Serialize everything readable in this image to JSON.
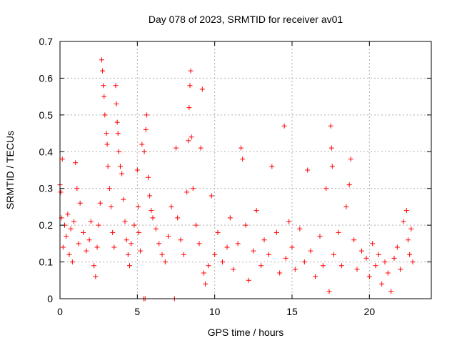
{
  "chart_data": {
    "type": "scatter",
    "title": "Day 078 of 2023, SRMTID for receiver av01",
    "xlabel": "GPS time / hours",
    "ylabel": "SRMTID / TECUs",
    "xlim": [
      0,
      24
    ],
    "ylim": [
      0,
      0.7
    ],
    "xticks": [
      0,
      5,
      10,
      15,
      20
    ],
    "xtick_labels": [
      "0",
      "5",
      "10",
      "15",
      "20"
    ],
    "yticks": [
      0,
      0.1,
      0.2,
      0.3,
      0.4,
      0.5,
      0.6,
      0.7
    ],
    "ytick_labels": [
      "0",
      "0.1",
      "0.2",
      "0.3",
      "0.4",
      "0.5",
      "0.6",
      "0.7"
    ],
    "grid": true,
    "marker": "+",
    "color": "#ff0000",
    "series": [
      {
        "name": "av01",
        "points": [
          [
            0.0,
            0.31
          ],
          [
            0.05,
            0.29
          ],
          [
            0.1,
            0.22
          ],
          [
            0.15,
            0.38
          ],
          [
            0.2,
            0.14
          ],
          [
            0.3,
            0.2
          ],
          [
            0.4,
            0.17
          ],
          [
            0.5,
            0.23
          ],
          [
            0.6,
            0.12
          ],
          [
            0.7,
            0.19
          ],
          [
            0.8,
            0.1
          ],
          [
            0.9,
            0.21
          ],
          [
            1.0,
            0.37
          ],
          [
            1.1,
            0.3
          ],
          [
            1.2,
            0.15
          ],
          [
            1.3,
            0.26
          ],
          [
            1.5,
            0.18
          ],
          [
            1.7,
            0.13
          ],
          [
            1.9,
            0.16
          ],
          [
            2.0,
            0.21
          ],
          [
            2.2,
            0.09
          ],
          [
            2.3,
            0.06
          ],
          [
            2.4,
            0.14
          ],
          [
            2.5,
            0.2
          ],
          [
            2.6,
            0.26
          ],
          [
            2.7,
            0.65
          ],
          [
            2.75,
            0.62
          ],
          [
            2.8,
            0.58
          ],
          [
            2.85,
            0.55
          ],
          [
            2.9,
            0.5
          ],
          [
            3.0,
            0.45
          ],
          [
            3.05,
            0.42
          ],
          [
            3.1,
            0.36
          ],
          [
            3.2,
            0.3
          ],
          [
            3.3,
            0.25
          ],
          [
            3.4,
            0.18
          ],
          [
            3.5,
            0.14
          ],
          [
            3.6,
            0.58
          ],
          [
            3.65,
            0.53
          ],
          [
            3.7,
            0.48
          ],
          [
            3.75,
            0.45
          ],
          [
            3.8,
            0.4
          ],
          [
            3.9,
            0.36
          ],
          [
            4.0,
            0.34
          ],
          [
            4.1,
            0.27
          ],
          [
            4.2,
            0.21
          ],
          [
            4.3,
            0.16
          ],
          [
            4.4,
            0.12
          ],
          [
            4.5,
            0.09
          ],
          [
            4.6,
            0.15
          ],
          [
            4.8,
            0.2
          ],
          [
            5.0,
            0.35
          ],
          [
            5.05,
            0.25
          ],
          [
            5.1,
            0.18
          ],
          [
            5.2,
            0.13
          ],
          [
            5.3,
            0.42
          ],
          [
            5.4,
            0.0
          ],
          [
            5.45,
            0.4
          ],
          [
            5.5,
            0.0
          ],
          [
            5.55,
            0.46
          ],
          [
            5.6,
            0.5
          ],
          [
            5.7,
            0.33
          ],
          [
            5.8,
            0.28
          ],
          [
            5.9,
            0.24
          ],
          [
            6.0,
            0.22
          ],
          [
            6.2,
            0.19
          ],
          [
            6.4,
            0.15
          ],
          [
            6.6,
            0.12
          ],
          [
            6.8,
            0.1
          ],
          [
            7.0,
            0.17
          ],
          [
            7.2,
            0.25
          ],
          [
            7.4,
            0.0
          ],
          [
            7.5,
            0.41
          ],
          [
            7.6,
            0.22
          ],
          [
            7.8,
            0.16
          ],
          [
            8.0,
            0.12
          ],
          [
            8.2,
            0.29
          ],
          [
            8.3,
            0.43
          ],
          [
            8.35,
            0.52
          ],
          [
            8.4,
            0.58
          ],
          [
            8.45,
            0.62
          ],
          [
            8.5,
            0.44
          ],
          [
            8.6,
            0.3
          ],
          [
            8.8,
            0.2
          ],
          [
            9.0,
            0.15
          ],
          [
            9.1,
            0.41
          ],
          [
            9.2,
            0.57
          ],
          [
            9.3,
            0.07
          ],
          [
            9.4,
            0.04
          ],
          [
            9.6,
            0.09
          ],
          [
            9.8,
            0.28
          ],
          [
            10.0,
            0.12
          ],
          [
            10.2,
            0.18
          ],
          [
            10.5,
            0.1
          ],
          [
            10.8,
            0.14
          ],
          [
            11.0,
            0.22
          ],
          [
            11.2,
            0.08
          ],
          [
            11.5,
            0.15
          ],
          [
            11.7,
            0.41
          ],
          [
            11.8,
            0.38
          ],
          [
            12.0,
            0.2
          ],
          [
            12.2,
            0.05
          ],
          [
            12.5,
            0.13
          ],
          [
            12.7,
            0.24
          ],
          [
            13.0,
            0.09
          ],
          [
            13.2,
            0.16
          ],
          [
            13.5,
            0.12
          ],
          [
            13.7,
            0.36
          ],
          [
            14.0,
            0.18
          ],
          [
            14.2,
            0.07
          ],
          [
            14.5,
            0.47
          ],
          [
            14.6,
            0.11
          ],
          [
            14.8,
            0.21
          ],
          [
            15.0,
            0.14
          ],
          [
            15.2,
            0.08
          ],
          [
            15.5,
            0.19
          ],
          [
            15.8,
            0.1
          ],
          [
            16.0,
            0.35
          ],
          [
            16.2,
            0.13
          ],
          [
            16.5,
            0.06
          ],
          [
            16.8,
            0.17
          ],
          [
            17.0,
            0.09
          ],
          [
            17.2,
            0.3
          ],
          [
            17.4,
            0.02
          ],
          [
            17.5,
            0.47
          ],
          [
            17.55,
            0.41
          ],
          [
            17.6,
            0.36
          ],
          [
            17.7,
            0.12
          ],
          [
            18.0,
            0.18
          ],
          [
            18.2,
            0.09
          ],
          [
            18.5,
            0.25
          ],
          [
            18.7,
            0.31
          ],
          [
            18.8,
            0.38
          ],
          [
            19.0,
            0.16
          ],
          [
            19.2,
            0.08
          ],
          [
            19.5,
            0.13
          ],
          [
            19.8,
            0.11
          ],
          [
            20.0,
            0.06
          ],
          [
            20.2,
            0.15
          ],
          [
            20.4,
            0.09
          ],
          [
            20.6,
            0.12
          ],
          [
            20.8,
            0.04
          ],
          [
            21.0,
            0.1
          ],
          [
            21.2,
            0.07
          ],
          [
            21.4,
            0.02
          ],
          [
            21.6,
            0.11
          ],
          [
            21.8,
            0.14
          ],
          [
            22.0,
            0.08
          ],
          [
            22.2,
            0.21
          ],
          [
            22.4,
            0.24
          ],
          [
            22.5,
            0.16
          ],
          [
            22.6,
            0.12
          ],
          [
            22.7,
            0.19
          ],
          [
            22.8,
            0.1
          ]
        ]
      }
    ]
  }
}
